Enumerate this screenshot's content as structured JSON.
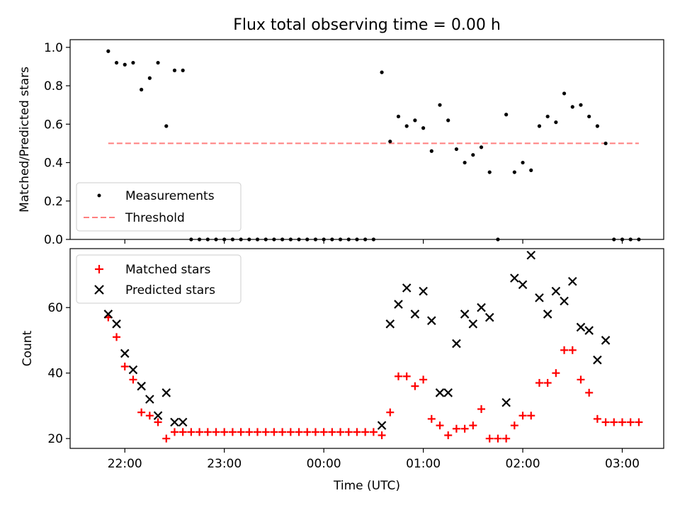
{
  "chart_data": [
    {
      "type": "scatter",
      "title": "Flux total observing time = 0.00 h",
      "xlabel": "",
      "ylabel": "Matched/Predicted stars",
      "ylim": [
        0.0,
        1.04
      ],
      "xlim": [
        "21:27",
        "03:25"
      ],
      "yticks": [
        "0.0",
        "0.2",
        "0.4",
        "0.6",
        "0.8",
        "1.0"
      ],
      "legend_placement": "lower-left",
      "series": [
        {
          "name": "Measurements",
          "style": "dot",
          "color": "#000000",
          "points": [
            [
              "21:50",
              0.98
            ],
            [
              "21:55",
              0.92
            ],
            [
              "22:00",
              0.91
            ],
            [
              "22:05",
              0.92
            ],
            [
              "22:10",
              0.78
            ],
            [
              "22:15",
              0.84
            ],
            [
              "22:20",
              0.92
            ],
            [
              "22:25",
              0.59
            ],
            [
              "22:30",
              0.88
            ],
            [
              "22:35",
              0.88
            ],
            [
              "22:40",
              0.0
            ],
            [
              "22:45",
              0.0
            ],
            [
              "22:50",
              0.0
            ],
            [
              "22:55",
              0.0
            ],
            [
              "23:00",
              0.0
            ],
            [
              "23:05",
              0.0
            ],
            [
              "23:10",
              0.0
            ],
            [
              "23:15",
              0.0
            ],
            [
              "23:20",
              0.0
            ],
            [
              "23:25",
              0.0
            ],
            [
              "23:30",
              0.0
            ],
            [
              "23:35",
              0.0
            ],
            [
              "23:40",
              0.0
            ],
            [
              "23:45",
              0.0
            ],
            [
              "23:50",
              0.0
            ],
            [
              "23:55",
              0.0
            ],
            [
              "00:00",
              0.0
            ],
            [
              "00:05",
              0.0
            ],
            [
              "00:10",
              0.0
            ],
            [
              "00:15",
              0.0
            ],
            [
              "00:20",
              0.0
            ],
            [
              "00:25",
              0.0
            ],
            [
              "00:30",
              0.0
            ],
            [
              "00:35",
              0.87
            ],
            [
              "00:40",
              0.51
            ],
            [
              "00:45",
              0.64
            ],
            [
              "00:50",
              0.59
            ],
            [
              "00:55",
              0.62
            ],
            [
              "01:00",
              0.58
            ],
            [
              "01:05",
              0.46
            ],
            [
              "01:10",
              0.7
            ],
            [
              "01:15",
              0.62
            ],
            [
              "01:20",
              0.47
            ],
            [
              "01:25",
              0.4
            ],
            [
              "01:30",
              0.44
            ],
            [
              "01:35",
              0.48
            ],
            [
              "01:40",
              0.35
            ],
            [
              "01:45",
              0.0
            ],
            [
              "01:50",
              0.65
            ],
            [
              "01:55",
              0.35
            ],
            [
              "02:00",
              0.4
            ],
            [
              "02:05",
              0.36
            ],
            [
              "02:10",
              0.59
            ],
            [
              "02:15",
              0.64
            ],
            [
              "02:20",
              0.61
            ],
            [
              "02:25",
              0.76
            ],
            [
              "02:30",
              0.69
            ],
            [
              "02:35",
              0.7
            ],
            [
              "02:40",
              0.64
            ],
            [
              "02:45",
              0.59
            ],
            [
              "02:50",
              0.5
            ],
            [
              "02:55",
              0.0
            ],
            [
              "03:00",
              0.0
            ],
            [
              "03:05",
              0.0
            ],
            [
              "03:10",
              0.0
            ]
          ]
        },
        {
          "name": "Threshold",
          "style": "dashed-line",
          "color": "#ff7f7f",
          "points": [
            [
              "21:50",
              0.5
            ],
            [
              "03:10",
              0.5
            ]
          ]
        }
      ]
    },
    {
      "type": "scatter",
      "title": "",
      "xlabel": "Time (UTC)",
      "ylabel": "Count",
      "ylim": [
        17,
        78
      ],
      "xlim": [
        "21:27",
        "03:25"
      ],
      "xticks": [
        "22:00",
        "23:00",
        "00:00",
        "01:00",
        "02:00",
        "03:00"
      ],
      "yticks": [
        "20",
        "40",
        "60"
      ],
      "legend_placement": "upper-left",
      "series": [
        {
          "name": "Matched stars",
          "style": "plus",
          "color": "#ff0000",
          "points": [
            [
              "21:50",
              57
            ],
            [
              "21:55",
              51
            ],
            [
              "22:00",
              42
            ],
            [
              "22:05",
              38
            ],
            [
              "22:10",
              28
            ],
            [
              "22:15",
              27
            ],
            [
              "22:20",
              25
            ],
            [
              "22:25",
              20
            ],
            [
              "22:30",
              22
            ],
            [
              "22:35",
              22
            ],
            [
              "22:40",
              22
            ],
            [
              "22:45",
              22
            ],
            [
              "22:50",
              22
            ],
            [
              "22:55",
              22
            ],
            [
              "23:00",
              22
            ],
            [
              "23:05",
              22
            ],
            [
              "23:10",
              22
            ],
            [
              "23:15",
              22
            ],
            [
              "23:20",
              22
            ],
            [
              "23:25",
              22
            ],
            [
              "23:30",
              22
            ],
            [
              "23:35",
              22
            ],
            [
              "23:40",
              22
            ],
            [
              "23:45",
              22
            ],
            [
              "23:50",
              22
            ],
            [
              "23:55",
              22
            ],
            [
              "00:00",
              22
            ],
            [
              "00:05",
              22
            ],
            [
              "00:10",
              22
            ],
            [
              "00:15",
              22
            ],
            [
              "00:20",
              22
            ],
            [
              "00:25",
              22
            ],
            [
              "00:30",
              22
            ],
            [
              "00:35",
              21
            ],
            [
              "00:40",
              28
            ],
            [
              "00:45",
              39
            ],
            [
              "00:50",
              39
            ],
            [
              "00:55",
              36
            ],
            [
              "01:00",
              38
            ],
            [
              "01:05",
              26
            ],
            [
              "01:10",
              24
            ],
            [
              "01:15",
              21
            ],
            [
              "01:20",
              23
            ],
            [
              "01:25",
              23
            ],
            [
              "01:30",
              24
            ],
            [
              "01:35",
              29
            ],
            [
              "01:40",
              20
            ],
            [
              "01:45",
              20
            ],
            [
              "01:50",
              20
            ],
            [
              "01:55",
              24
            ],
            [
              "02:00",
              27
            ],
            [
              "02:05",
              27
            ],
            [
              "02:10",
              37
            ],
            [
              "02:15",
              37
            ],
            [
              "02:20",
              40
            ],
            [
              "02:25",
              47
            ],
            [
              "02:30",
              47
            ],
            [
              "02:35",
              38
            ],
            [
              "02:40",
              34
            ],
            [
              "02:45",
              26
            ],
            [
              "02:50",
              25
            ],
            [
              "02:55",
              25
            ],
            [
              "03:00",
              25
            ],
            [
              "03:05",
              25
            ],
            [
              "03:10",
              25
            ]
          ]
        },
        {
          "name": "Predicted stars",
          "style": "cross",
          "color": "#000000",
          "points": [
            [
              "21:50",
              58
            ],
            [
              "21:55",
              55
            ],
            [
              "22:00",
              46
            ],
            [
              "22:05",
              41
            ],
            [
              "22:10",
              36
            ],
            [
              "22:15",
              32
            ],
            [
              "22:20",
              27
            ],
            [
              "22:25",
              34
            ],
            [
              "22:30",
              25
            ],
            [
              "22:35",
              25
            ],
            [
              "00:35",
              24
            ],
            [
              "00:40",
              55
            ],
            [
              "00:45",
              61
            ],
            [
              "00:50",
              66
            ],
            [
              "00:55",
              58
            ],
            [
              "01:00",
              65
            ],
            [
              "01:05",
              56
            ],
            [
              "01:10",
              34
            ],
            [
              "01:15",
              34
            ],
            [
              "01:20",
              49
            ],
            [
              "01:25",
              58
            ],
            [
              "01:30",
              55
            ],
            [
              "01:35",
              60
            ],
            [
              "01:40",
              57
            ],
            [
              "01:50",
              31
            ],
            [
              "01:55",
              69
            ],
            [
              "02:00",
              67
            ],
            [
              "02:05",
              76
            ],
            [
              "02:10",
              63
            ],
            [
              "02:15",
              58
            ],
            [
              "02:20",
              65
            ],
            [
              "02:25",
              62
            ],
            [
              "02:30",
              68
            ],
            [
              "02:35",
              54
            ],
            [
              "02:40",
              53
            ],
            [
              "02:45",
              44
            ],
            [
              "02:50",
              50
            ]
          ]
        }
      ]
    }
  ]
}
